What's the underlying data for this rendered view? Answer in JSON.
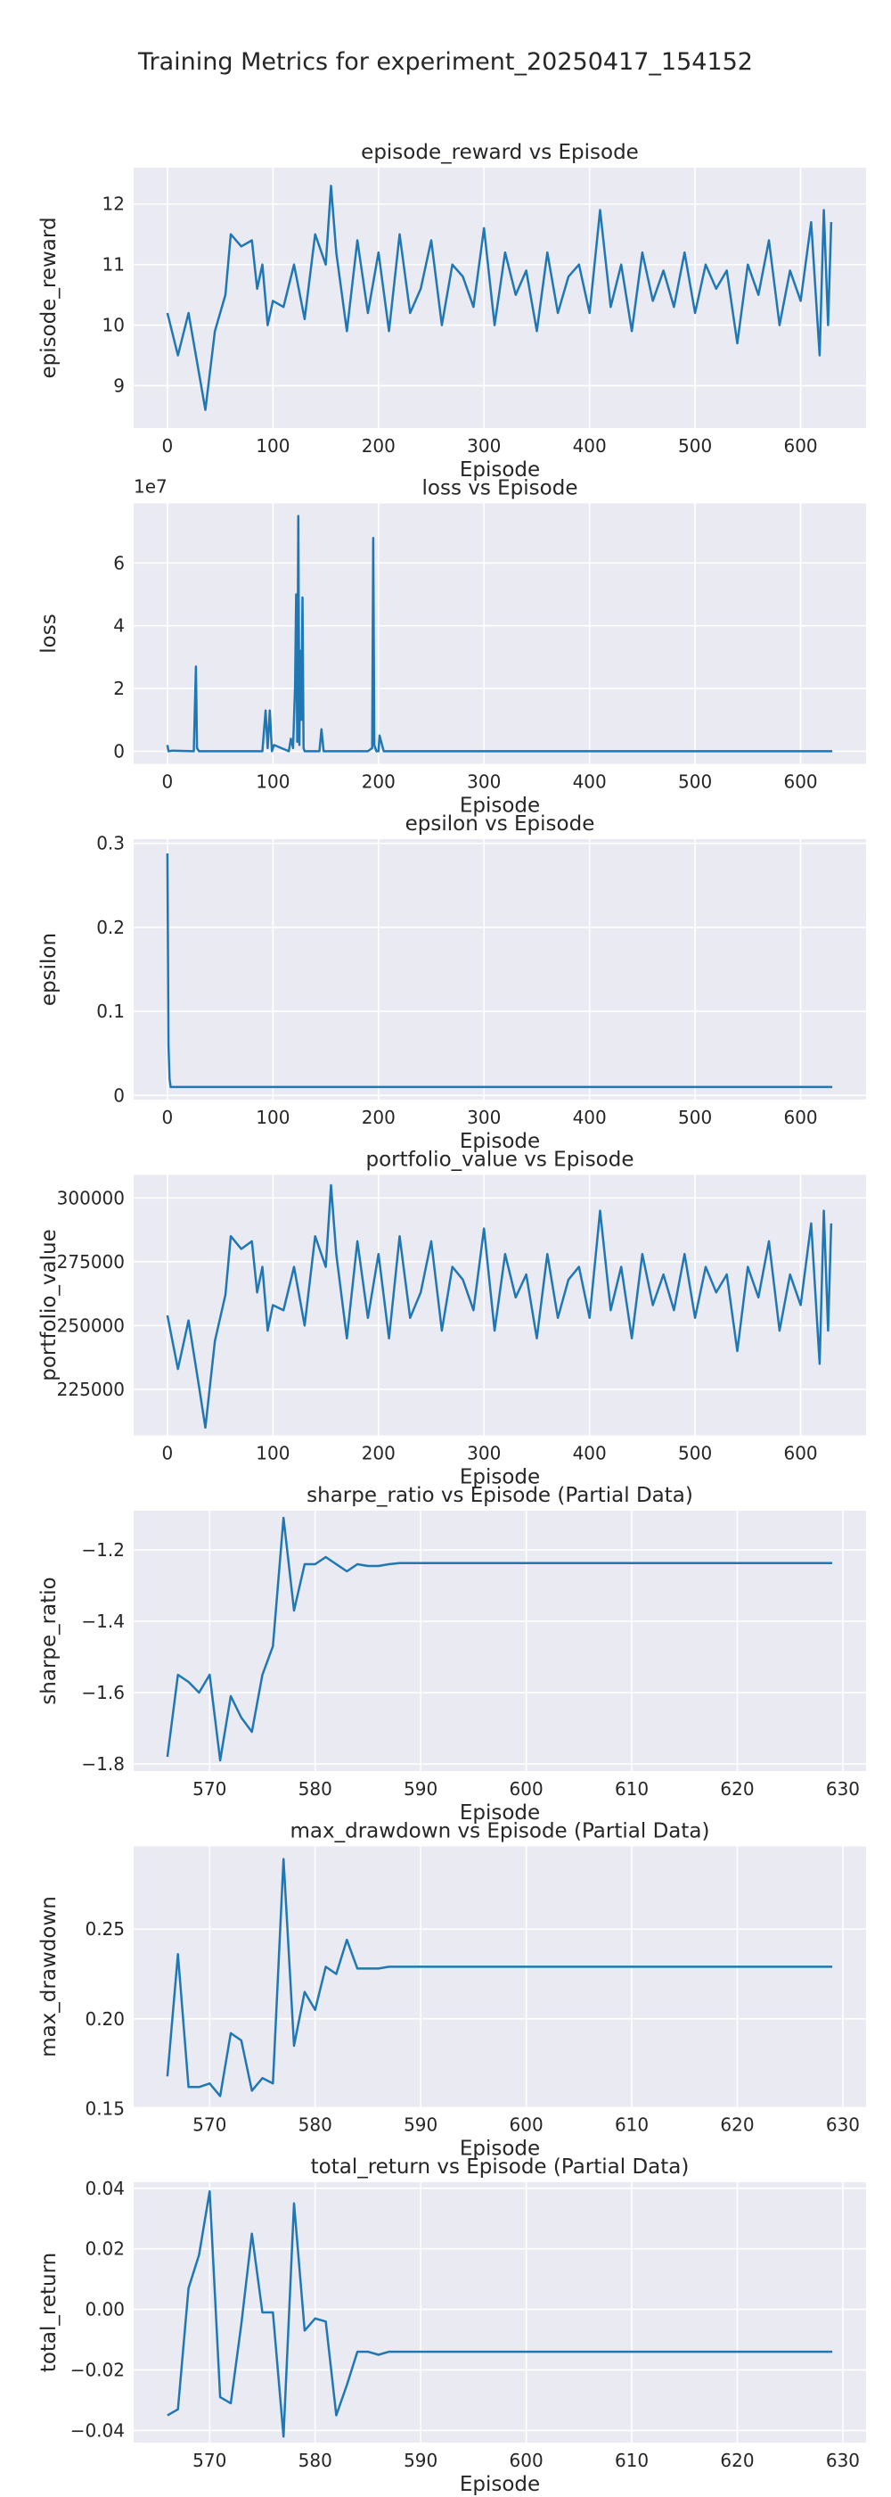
{
  "figure_title": "Training Metrics for experiment_20250417_154152",
  "colors": {
    "line": "#1f77b4",
    "panel_bg": "#eaeaf2",
    "grid": "#ffffff",
    "text": "#262626"
  },
  "chart_data": [
    {
      "type": "line",
      "title": "episode_reward vs Episode",
      "xlabel": "Episode",
      "ylabel": "episode_reward",
      "xlim": [
        -32,
        662
      ],
      "ylim": [
        8.3,
        12.6
      ],
      "xticks": [
        0,
        100,
        200,
        300,
        400,
        500,
        600
      ],
      "yticks": [
        9,
        10,
        11,
        12
      ],
      "grid": true,
      "series": [
        {
          "x": [
            0,
            10,
            20,
            30,
            36,
            45,
            55,
            60,
            70,
            80,
            85,
            90,
            95,
            100,
            110,
            120,
            130,
            140,
            150,
            155,
            160,
            170,
            180,
            190,
            200,
            210,
            220,
            230,
            240,
            250,
            260,
            270,
            280,
            290,
            300,
            310,
            320,
            330,
            340,
            350,
            360,
            370,
            380,
            390,
            400,
            410,
            420,
            430,
            440,
            450,
            460,
            470,
            480,
            490,
            500,
            510,
            520,
            530,
            540,
            550,
            560,
            570,
            580,
            590,
            600,
            610,
            618,
            622,
            626,
            629
          ],
          "y": [
            10.2,
            9.5,
            10.2,
            9.2,
            8.6,
            9.9,
            10.5,
            11.5,
            11.3,
            11.4,
            10.6,
            11.0,
            10.0,
            10.4,
            10.3,
            11.0,
            10.1,
            11.5,
            11.0,
            12.3,
            11.2,
            9.9,
            11.4,
            10.2,
            11.2,
            9.9,
            11.5,
            10.2,
            10.6,
            11.4,
            10.0,
            11.0,
            10.8,
            10.3,
            11.6,
            10.0,
            11.2,
            10.5,
            10.9,
            9.9,
            11.2,
            10.2,
            10.8,
            11.0,
            10.2,
            11.9,
            10.3,
            11.0,
            9.9,
            11.2,
            10.4,
            10.9,
            10.3,
            11.2,
            10.2,
            11.0,
            10.6,
            10.9,
            9.7,
            11.0,
            10.5,
            11.4,
            10.0,
            10.9,
            10.4,
            11.7,
            9.5,
            11.9,
            10.0,
            11.7
          ]
        }
      ]
    },
    {
      "type": "line",
      "title": "loss vs Episode",
      "xlabel": "Episode",
      "ylabel": "loss",
      "offset_text": "1e7",
      "xlim": [
        -32,
        662
      ],
      "ylim": [
        -0.4,
        7.9
      ],
      "xticks": [
        0,
        100,
        200,
        300,
        400,
        500,
        600
      ],
      "yticks": [
        0,
        2,
        4,
        6
      ],
      "grid": true,
      "series": [
        {
          "x": [
            0,
            1,
            5,
            25,
            27,
            28,
            30,
            90,
            93,
            95,
            97,
            99,
            101,
            115,
            117,
            119,
            121,
            122,
            123,
            124,
            125,
            126,
            127,
            128,
            129,
            130,
            144,
            146,
            148,
            190,
            194,
            195,
            196,
            198,
            200,
            201,
            205,
            210,
            400,
            630
          ],
          "y": [
            0.2,
            0.0,
            0.02,
            0.0,
            2.7,
            0.1,
            0.0,
            0.0,
            1.3,
            0.1,
            1.3,
            0.0,
            0.2,
            0.0,
            0.4,
            0.1,
            2.1,
            5.0,
            0.3,
            7.5,
            0.2,
            3.2,
            1.0,
            4.9,
            0.1,
            0.0,
            0.0,
            0.7,
            0.0,
            0.0,
            0.1,
            6.8,
            0.2,
            0.0,
            0.0,
            0.5,
            0.0,
            0.0,
            0.0,
            0.0
          ]
        }
      ]
    },
    {
      "type": "line",
      "title": "epsilon vs Episode",
      "xlabel": "Episode",
      "ylabel": "epsilon",
      "xlim": [
        -32,
        662
      ],
      "ylim": [
        -0.005,
        0.305
      ],
      "xticks": [
        0,
        100,
        200,
        300,
        400,
        500,
        600
      ],
      "yticks": [
        0.0,
        0.1,
        0.2,
        0.3
      ],
      "grid": true,
      "series": [
        {
          "x": [
            0,
            1,
            2,
            3,
            630
          ],
          "y": [
            0.288,
            0.06,
            0.02,
            0.01,
            0.01
          ]
        }
      ]
    },
    {
      "type": "line",
      "title": "portfolio_value vs Episode",
      "xlabel": "Episode",
      "ylabel": "portfolio_value",
      "xlim": [
        -32,
        662
      ],
      "ylim": [
        207000,
        309000
      ],
      "xticks": [
        0,
        100,
        200,
        300,
        400,
        500,
        600
      ],
      "yticks": [
        225000,
        250000,
        275000,
        300000
      ],
      "grid": true,
      "series": [
        {
          "x": [
            0,
            10,
            20,
            30,
            36,
            45,
            55,
            60,
            70,
            80,
            85,
            90,
            95,
            100,
            110,
            120,
            130,
            140,
            150,
            155,
            160,
            170,
            180,
            190,
            200,
            210,
            220,
            230,
            240,
            250,
            260,
            270,
            280,
            290,
            300,
            310,
            320,
            330,
            340,
            350,
            360,
            370,
            380,
            390,
            400,
            410,
            420,
            430,
            440,
            450,
            460,
            470,
            480,
            490,
            500,
            510,
            520,
            530,
            540,
            550,
            560,
            570,
            580,
            590,
            600,
            610,
            618,
            622,
            626,
            629
          ],
          "y": [
            254000,
            233000,
            252000,
            226000,
            210000,
            244000,
            262000,
            285000,
            280000,
            283000,
            263000,
            273000,
            248000,
            258000,
            256000,
            273000,
            250000,
            285000,
            273000,
            305000,
            278000,
            245000,
            283000,
            253000,
            278000,
            245000,
            285000,
            253000,
            263000,
            283000,
            248000,
            273000,
            268000,
            256000,
            288000,
            248000,
            278000,
            261000,
            270000,
            245000,
            278000,
            253000,
            268000,
            273000,
            253000,
            295000,
            256000,
            273000,
            245000,
            278000,
            258000,
            270000,
            256000,
            278000,
            253000,
            273000,
            263000,
            270000,
            240000,
            273000,
            261000,
            283000,
            248000,
            270000,
            258000,
            290000,
            235000,
            295000,
            248000,
            290000
          ]
        }
      ]
    },
    {
      "type": "line",
      "title": "sharpe_ratio vs Episode (Partial Data)",
      "xlabel": "Episode",
      "ylabel": "sharpe_ratio",
      "xlim": [
        562.8,
        632.2
      ],
      "ylim": [
        -1.82,
        -1.09
      ],
      "xticks": [
        570,
        580,
        590,
        600,
        610,
        620,
        630
      ],
      "yticks": [
        -1.8,
        -1.6,
        -1.4,
        -1.2
      ],
      "grid": true,
      "series": [
        {
          "x": [
            566,
            567,
            568,
            569,
            570,
            571,
            572,
            573,
            574,
            575,
            576,
            577,
            578,
            579,
            580,
            581,
            582,
            583,
            584,
            585,
            586,
            587,
            588,
            589,
            590,
            629
          ],
          "y": [
            -1.78,
            -1.55,
            -1.57,
            -1.6,
            -1.55,
            -1.79,
            -1.61,
            -1.67,
            -1.71,
            -1.55,
            -1.47,
            -1.11,
            -1.37,
            -1.24,
            -1.24,
            -1.22,
            -1.24,
            -1.26,
            -1.24,
            -1.245,
            -1.245,
            -1.24,
            -1.237,
            -1.237,
            -1.237,
            -1.237
          ]
        }
      ]
    },
    {
      "type": "line",
      "title": "max_drawdown vs Episode (Partial Data)",
      "xlabel": "Episode",
      "ylabel": "max_drawdown",
      "xlim": [
        562.8,
        632.2
      ],
      "ylim": [
        0.151,
        0.296
      ],
      "xticks": [
        570,
        580,
        590,
        600,
        610,
        620,
        630
      ],
      "yticks": [
        0.15,
        0.2,
        0.25
      ],
      "ytick_labels": [
        "0.15",
        "0.20",
        "0.25"
      ],
      "grid": true,
      "series": [
        {
          "x": [
            566,
            567,
            568,
            569,
            570,
            571,
            572,
            573,
            574,
            575,
            576,
            577,
            578,
            579,
            580,
            581,
            582,
            583,
            584,
            585,
            586,
            587,
            588,
            589,
            590,
            629
          ],
          "y": [
            0.168,
            0.236,
            0.162,
            0.162,
            0.164,
            0.157,
            0.192,
            0.188,
            0.16,
            0.167,
            0.164,
            0.289,
            0.185,
            0.215,
            0.205,
            0.229,
            0.225,
            0.244,
            0.228,
            0.228,
            0.228,
            0.229,
            0.229,
            0.229,
            0.229,
            0.229
          ]
        }
      ]
    },
    {
      "type": "line",
      "title": "total_return vs Episode (Partial Data)",
      "xlabel": "Episode",
      "ylabel": "total_return",
      "xlim": [
        562.8,
        632.2
      ],
      "ylim": [
        -0.044,
        0.042
      ],
      "xticks": [
        570,
        580,
        590,
        600,
        610,
        620,
        630
      ],
      "yticks": [
        -0.04,
        -0.02,
        0.0,
        0.02,
        0.04
      ],
      "ytick_labels": [
        "−0.04",
        "−0.02",
        "0.00",
        "0.02",
        "0.04"
      ],
      "grid": true,
      "series": [
        {
          "x": [
            566,
            567,
            568,
            569,
            570,
            571,
            572,
            573,
            574,
            575,
            576,
            577,
            578,
            579,
            580,
            581,
            582,
            583,
            584,
            585,
            586,
            587,
            588,
            589,
            590,
            629
          ],
          "y": [
            -0.035,
            -0.033,
            0.007,
            0.018,
            0.039,
            -0.029,
            -0.031,
            -0.005,
            0.025,
            -0.001,
            -0.001,
            -0.042,
            0.035,
            -0.007,
            -0.003,
            -0.004,
            -0.035,
            -0.025,
            -0.014,
            -0.014,
            -0.015,
            -0.014,
            -0.014,
            -0.014,
            -0.014,
            -0.014
          ]
        }
      ]
    }
  ]
}
